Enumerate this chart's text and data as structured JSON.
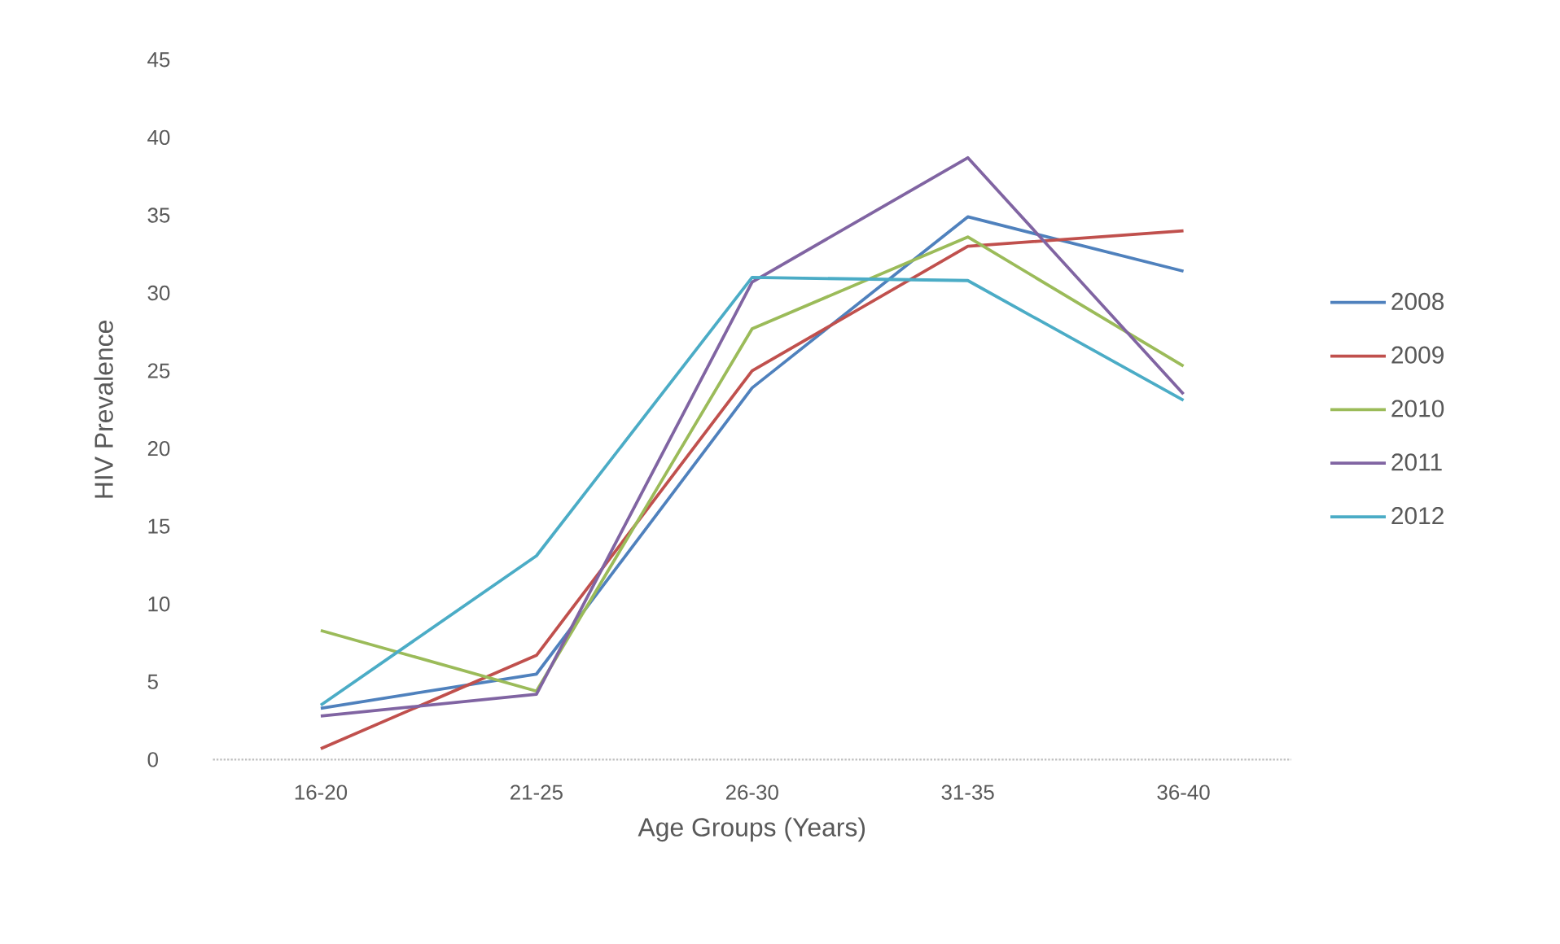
{
  "chart_data": {
    "type": "line",
    "xlabel": "Age Groups (Years)",
    "ylabel": "HIV Prevalence",
    "categories": [
      "16-20",
      "21-25",
      "26-30",
      "31-35",
      "36-40"
    ],
    "series": [
      {
        "name": "2008",
        "color": "#4f81bd",
        "values": [
          3.3,
          5.5,
          23.9,
          34.9,
          31.4
        ]
      },
      {
        "name": "2009",
        "color": "#c0504d",
        "values": [
          0.7,
          6.7,
          25,
          33,
          34
        ]
      },
      {
        "name": "2010",
        "color": "#9bbb59",
        "values": [
          8.3,
          4.4,
          27.7,
          33.6,
          25.3
        ]
      },
      {
        "name": "2011",
        "color": "#8064a2",
        "values": [
          2.8,
          4.2,
          30.7,
          38.7,
          23.5
        ]
      },
      {
        "name": "2012",
        "color": "#4bacc6",
        "values": [
          3.5,
          13.1,
          31,
          30.8,
          23.1
        ]
      }
    ],
    "ylim": [
      0,
      45
    ],
    "yticks": [
      0,
      5,
      10,
      15,
      20,
      25,
      30,
      35,
      40,
      45
    ],
    "grid": false,
    "legend": "right",
    "marker": "none",
    "line_style": "solid"
  }
}
